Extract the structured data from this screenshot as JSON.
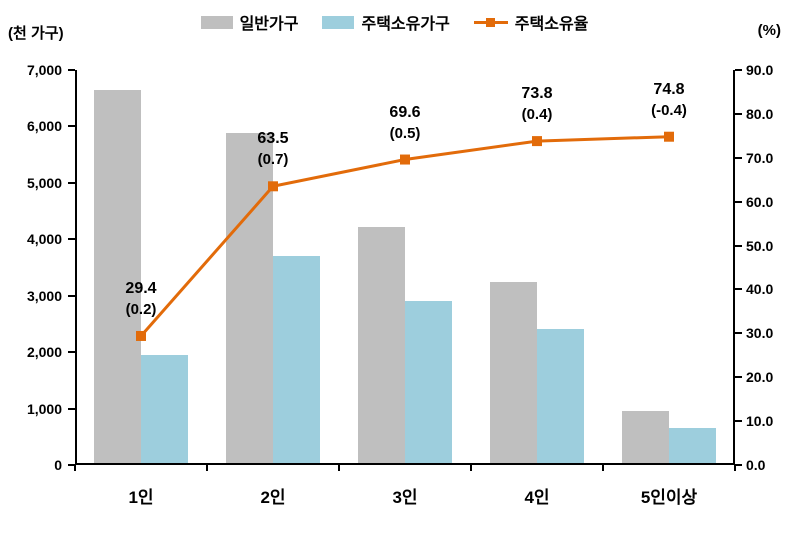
{
  "chart_data": {
    "type": "bar",
    "subtype": "grouped-bars-with-line",
    "categories": [
      "1인",
      "2인",
      "3인",
      "4인",
      "5인이상"
    ],
    "bar_series": [
      {
        "name": "일반가구",
        "color": "#BFBFBF",
        "values": [
          6640,
          5880,
          4220,
          3240,
          960
        ]
      },
      {
        "name": "주택소유가구",
        "color": "#9DCEDD",
        "values": [
          1950,
          3700,
          2900,
          2410,
          660
        ]
      }
    ],
    "line_series": {
      "name": "주택소유율",
      "color": "#E26B0A",
      "values": [
        29.4,
        63.5,
        69.6,
        73.8,
        74.8
      ],
      "change_labels": [
        "(0.2)",
        "(0.7)",
        "(0.5)",
        "(0.4)",
        "(-0.4)"
      ]
    },
    "left_axis": {
      "title": "(천 가구)",
      "min": 0,
      "max": 7000,
      "step": 1000,
      "tick_labels": [
        "0",
        "1,000",
        "2,000",
        "3,000",
        "4,000",
        "5,000",
        "6,000",
        "7,000"
      ]
    },
    "right_axis": {
      "title": "(%)",
      "min": 0,
      "max": 90,
      "step": 10,
      "tick_labels": [
        "0.0",
        "10.0",
        "20.0",
        "30.0",
        "40.0",
        "50.0",
        "60.0",
        "70.0",
        "80.0",
        "90.0"
      ]
    },
    "legend": [
      "일반가구",
      "주택소유가구",
      "주택소유율"
    ],
    "grid": false,
    "legend_position": "top-center"
  }
}
